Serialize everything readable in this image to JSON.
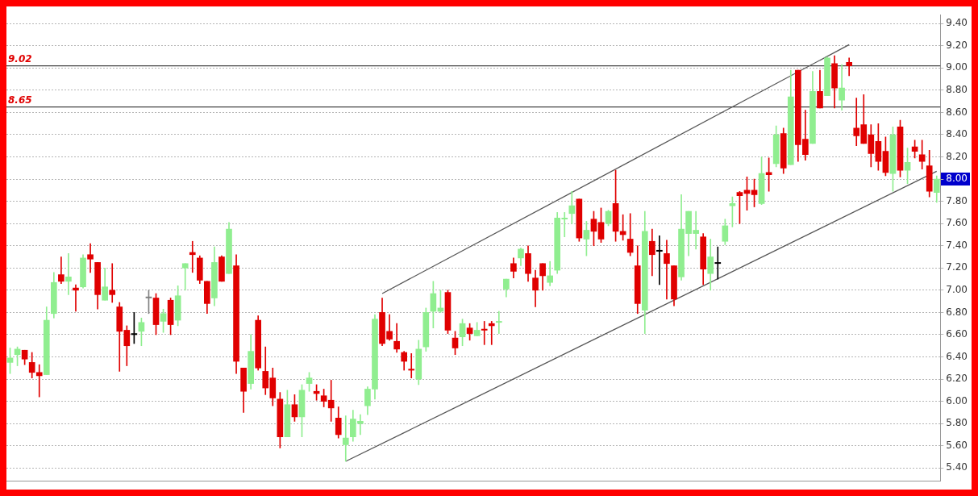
{
  "chart_data": {
    "type": "candlestick",
    "categories": [
      null,
      null,
      null,
      null,
      null,
      null,
      null,
      null,
      null,
      null,
      null,
      null,
      null,
      null,
      null,
      null,
      null,
      null,
      null,
      null,
      null,
      null,
      null,
      null,
      null,
      null,
      null,
      null,
      null,
      null,
      null,
      null,
      null,
      null,
      null,
      null,
      null,
      null,
      null,
      null,
      null,
      null,
      null,
      null,
      null,
      null,
      null,
      null,
      null,
      null,
      null,
      null,
      null,
      null,
      null,
      null,
      null,
      null,
      null,
      null,
      null,
      null,
      null,
      null,
      null,
      null,
      null,
      null,
      null,
      null,
      null,
      null,
      null,
      null,
      null,
      null,
      null,
      null,
      null,
      null,
      null,
      null,
      null,
      null,
      null,
      null,
      null,
      null,
      null,
      null,
      null,
      null,
      null,
      null,
      null,
      null,
      null,
      null,
      null,
      null,
      null,
      null,
      null,
      null,
      null,
      null,
      null,
      null,
      null,
      null,
      null,
      null,
      null,
      null,
      null,
      null,
      null,
      null,
      null,
      null,
      null,
      null,
      null,
      null,
      null,
      null,
      null,
      null
    ],
    "ohlc": [
      [
        6.35,
        6.48,
        6.25,
        6.39
      ],
      [
        6.42,
        6.49,
        6.32,
        6.47
      ],
      [
        6.46,
        6.46,
        6.33,
        6.38
      ],
      [
        6.35,
        6.44,
        6.21,
        6.26
      ],
      [
        6.26,
        6.33,
        6.04,
        6.23
      ],
      [
        6.24,
        6.85,
        6.24,
        6.73
      ],
      [
        6.79,
        7.16,
        6.75,
        7.07
      ],
      [
        7.14,
        7.3,
        7.06,
        7.08
      ],
      [
        7.08,
        7.33,
        6.96,
        7.12
      ],
      [
        7.02,
        7.05,
        6.81,
        7.0
      ],
      [
        7.03,
        7.32,
        7.02,
        7.29
      ],
      [
        7.32,
        7.42,
        7.16,
        7.28
      ],
      [
        7.25,
        7.25,
        6.83,
        6.96
      ],
      [
        6.91,
        7.2,
        6.91,
        7.03
      ],
      [
        7.0,
        7.24,
        6.89,
        6.96
      ],
      [
        6.85,
        6.89,
        6.27,
        6.63
      ],
      [
        6.64,
        6.68,
        6.32,
        6.5
      ],
      [
        6.6,
        6.8,
        6.52,
        6.61
      ],
      [
        6.63,
        6.75,
        6.5,
        6.71
      ],
      [
        6.93,
        7.0,
        6.79,
        6.94
      ],
      [
        6.93,
        6.97,
        6.6,
        6.69
      ],
      [
        6.72,
        6.83,
        6.62,
        6.79
      ],
      [
        6.91,
        6.93,
        6.6,
        6.69
      ],
      [
        6.73,
        7.04,
        6.68,
        6.95
      ],
      [
        7.2,
        7.24,
        7.0,
        7.24
      ],
      [
        7.34,
        7.44,
        7.16,
        7.32
      ],
      [
        7.29,
        7.31,
        7.06,
        7.09
      ],
      [
        7.08,
        7.08,
        6.79,
        6.88
      ],
      [
        6.93,
        7.39,
        6.86,
        7.25
      ],
      [
        7.3,
        7.31,
        7.08,
        7.08
      ],
      [
        7.15,
        7.61,
        7.15,
        7.55
      ],
      [
        7.22,
        7.32,
        6.25,
        6.36
      ],
      [
        6.3,
        6.3,
        5.9,
        6.09
      ],
      [
        6.16,
        6.6,
        6.11,
        6.45
      ],
      [
        6.73,
        6.77,
        6.28,
        6.3
      ],
      [
        6.27,
        6.49,
        6.06,
        6.12
      ],
      [
        6.21,
        6.3,
        5.96,
        6.03
      ],
      [
        6.02,
        6.08,
        5.58,
        5.68
      ],
      [
        5.68,
        6.1,
        5.68,
        5.97
      ],
      [
        5.97,
        6.06,
        5.82,
        5.86
      ],
      [
        5.86,
        6.15,
        5.68,
        6.1
      ],
      [
        6.16,
        6.26,
        6.09,
        6.21
      ],
      [
        6.09,
        6.15,
        6.01,
        6.07
      ],
      [
        6.05,
        6.11,
        5.95,
        6.0
      ],
      [
        6.01,
        6.19,
        5.82,
        5.94
      ],
      [
        5.85,
        5.95,
        5.67,
        5.7
      ],
      [
        5.61,
        5.87,
        5.46,
        5.67
      ],
      [
        5.68,
        5.92,
        5.64,
        5.84
      ],
      [
        5.8,
        5.88,
        5.7,
        5.82
      ],
      [
        5.96,
        6.13,
        5.88,
        6.11
      ],
      [
        6.11,
        6.78,
        6.02,
        6.74
      ],
      [
        6.8,
        6.93,
        6.5,
        6.52
      ],
      [
        6.63,
        6.78,
        6.55,
        6.56
      ],
      [
        6.54,
        6.7,
        6.44,
        6.47
      ],
      [
        6.44,
        6.45,
        6.28,
        6.36
      ],
      [
        6.29,
        6.43,
        6.21,
        6.28
      ],
      [
        6.2,
        6.55,
        6.15,
        6.47
      ],
      [
        6.49,
        6.84,
        6.45,
        6.8
      ],
      [
        6.81,
        7.08,
        6.66,
        6.97
      ],
      [
        6.81,
        7.0,
        6.8,
        6.84
      ],
      [
        6.98,
        7.0,
        6.61,
        6.64
      ],
      [
        6.57,
        6.63,
        6.42,
        6.48
      ],
      [
        6.58,
        6.74,
        6.5,
        6.7
      ],
      [
        6.66,
        6.7,
        6.55,
        6.61
      ],
      [
        6.59,
        6.71,
        6.59,
        6.64
      ],
      [
        6.65,
        6.72,
        6.51,
        6.64
      ],
      [
        6.7,
        6.72,
        6.51,
        6.68
      ],
      [
        6.71,
        6.81,
        6.61,
        6.72
      ],
      [
        7.01,
        7.1,
        6.94,
        7.1
      ],
      [
        7.24,
        7.29,
        7.11,
        7.17
      ],
      [
        7.29,
        7.38,
        7.22,
        7.37
      ],
      [
        7.33,
        7.4,
        7.08,
        7.15
      ],
      [
        7.11,
        7.18,
        6.85,
        7.0
      ],
      [
        7.24,
        7.24,
        7.0,
        7.13
      ],
      [
        7.07,
        7.26,
        7.04,
        7.13
      ],
      [
        7.18,
        7.7,
        7.15,
        7.65
      ],
      [
        7.64,
        7.7,
        7.48,
        7.65
      ],
      [
        7.69,
        7.89,
        7.6,
        7.76
      ],
      [
        7.82,
        7.82,
        7.44,
        7.47
      ],
      [
        7.46,
        7.62,
        7.31,
        7.54
      ],
      [
        7.64,
        7.71,
        7.4,
        7.53
      ],
      [
        7.61,
        7.74,
        7.43,
        7.46
      ],
      [
        7.6,
        7.72,
        7.58,
        7.71
      ],
      [
        7.78,
        8.08,
        7.44,
        7.53
      ],
      [
        7.53,
        7.68,
        7.45,
        7.5
      ],
      [
        7.46,
        7.69,
        7.31,
        7.34
      ],
      [
        7.22,
        7.4,
        6.79,
        6.88
      ],
      [
        6.82,
        7.71,
        6.61,
        7.53
      ],
      [
        7.44,
        7.55,
        7.13,
        7.32
      ],
      [
        7.35,
        7.49,
        7.05,
        7.36
      ],
      [
        7.33,
        7.45,
        6.92,
        7.24
      ],
      [
        7.22,
        7.22,
        6.86,
        6.92
      ],
      [
        7.12,
        7.86,
        7.09,
        7.55
      ],
      [
        7.51,
        7.71,
        7.31,
        7.71
      ],
      [
        7.51,
        7.71,
        7.37,
        7.54
      ],
      [
        7.48,
        7.51,
        7.05,
        7.19
      ],
      [
        7.15,
        7.46,
        7.0,
        7.3
      ],
      [
        7.24,
        7.39,
        7.1,
        7.25
      ],
      [
        7.44,
        7.64,
        7.41,
        7.58
      ],
      [
        7.76,
        7.84,
        7.57,
        7.78
      ],
      [
        7.88,
        7.89,
        7.6,
        7.85
      ],
      [
        7.9,
        8.02,
        7.72,
        7.87
      ],
      [
        7.9,
        8.0,
        7.75,
        7.86
      ],
      [
        7.78,
        8.2,
        7.77,
        8.05
      ],
      [
        8.06,
        8.19,
        7.89,
        8.04
      ],
      [
        8.14,
        8.48,
        8.11,
        8.4
      ],
      [
        8.41,
        8.46,
        8.05,
        8.1
      ],
      [
        8.13,
        8.98,
        8.13,
        8.74
      ],
      [
        8.98,
        8.98,
        8.16,
        8.31
      ],
      [
        8.36,
        8.62,
        8.17,
        8.22
      ],
      [
        8.32,
        8.97,
        8.32,
        8.79
      ],
      [
        8.79,
        8.98,
        8.64,
        8.64
      ],
      [
        8.75,
        9.1,
        8.75,
        9.09
      ],
      [
        9.04,
        9.11,
        8.64,
        8.82
      ],
      [
        8.71,
        9.03,
        8.62,
        8.82
      ],
      [
        9.05,
        9.09,
        8.93,
        9.02
      ],
      [
        8.46,
        8.73,
        8.3,
        8.39
      ],
      [
        8.49,
        8.76,
        8.32,
        8.32
      ],
      [
        8.4,
        8.49,
        8.11,
        8.23
      ],
      [
        8.34,
        8.5,
        8.08,
        8.16
      ],
      [
        8.25,
        8.38,
        8.03,
        8.06
      ],
      [
        8.05,
        8.47,
        7.89,
        8.4
      ],
      [
        8.47,
        8.53,
        8.02,
        8.08
      ],
      [
        8.08,
        8.28,
        7.96,
        8.15
      ],
      [
        8.29,
        8.35,
        8.19,
        8.25
      ],
      [
        8.22,
        8.35,
        8.09,
        8.16
      ],
      [
        8.12,
        8.26,
        7.84,
        7.89
      ],
      [
        7.88,
        8.03,
        7.79,
        8.0
      ]
    ],
    "colors": [
      "#90ee90",
      "#90ee90",
      "#e00000",
      "#e00000",
      "#e00000",
      "#90ee90",
      "#90ee90",
      "#e00000",
      "#90ee90",
      "#e00000",
      "#90ee90",
      "#e00000",
      "#e00000",
      "#90ee90",
      "#e00000",
      "#e00000",
      "#e00000",
      "#000000",
      "#90ee90",
      "#808080",
      "#e00000",
      "#90ee90",
      "#e00000",
      "#90ee90",
      "#90ee90",
      "#e00000",
      "#e00000",
      "#e00000",
      "#90ee90",
      "#e00000",
      "#90ee90",
      "#e00000",
      "#e00000",
      "#90ee90",
      "#e00000",
      "#e00000",
      "#e00000",
      "#e00000",
      "#90ee90",
      "#e00000",
      "#90ee90",
      "#90ee90",
      "#e00000",
      "#e00000",
      "#e00000",
      "#e00000",
      "#90ee90",
      "#90ee90",
      "#90ee90",
      "#90ee90",
      "#90ee90",
      "#e00000",
      "#e00000",
      "#e00000",
      "#e00000",
      "#e00000",
      "#90ee90",
      "#90ee90",
      "#90ee90",
      "#90ee90",
      "#e00000",
      "#e00000",
      "#90ee90",
      "#e00000",
      "#90ee90",
      "#e00000",
      "#e00000",
      "#90ee90",
      "#90ee90",
      "#e00000",
      "#90ee90",
      "#e00000",
      "#e00000",
      "#e00000",
      "#90ee90",
      "#90ee90",
      "#90ee90",
      "#90ee90",
      "#e00000",
      "#90ee90",
      "#e00000",
      "#e00000",
      "#90ee90",
      "#e00000",
      "#e00000",
      "#e00000",
      "#e00000",
      "#90ee90",
      "#e00000",
      "#000000",
      "#e00000",
      "#e00000",
      "#90ee90",
      "#90ee90",
      "#90ee90",
      "#e00000",
      "#90ee90",
      "#000000",
      "#90ee90",
      "#90ee90",
      "#e00000",
      "#e00000",
      "#e00000",
      "#90ee90",
      "#e00000",
      "#90ee90",
      "#e00000",
      "#90ee90",
      "#e00000",
      "#e00000",
      "#90ee90",
      "#e00000",
      "#90ee90",
      "#e00000",
      "#90ee90",
      "#e00000",
      "#e00000",
      "#e00000",
      "#e00000",
      "#e00000",
      "#e00000",
      "#90ee90",
      "#e00000",
      "#90ee90",
      "#e00000",
      "#e00000",
      "#e00000",
      "#90ee90"
    ],
    "series": [
      {
        "type": "line",
        "color": "#555555",
        "values": [
          null,
          null,
          null,
          null,
          null,
          null,
          null,
          null,
          null,
          null,
          null,
          null,
          null,
          null,
          null,
          null,
          null,
          null,
          null,
          null,
          null,
          null,
          null,
          null,
          null,
          null,
          null,
          null,
          null,
          null,
          null,
          null,
          null,
          null,
          null,
          null,
          null,
          null,
          null,
          null,
          null,
          null,
          null,
          null,
          null,
          null,
          null,
          null,
          null,
          null,
          null,
          6.97,
          null,
          null,
          null,
          null,
          null,
          null,
          null,
          null,
          null,
          null,
          null,
          null,
          null,
          null,
          null,
          null,
          null,
          null,
          null,
          null,
          null,
          null,
          null,
          null,
          null,
          null,
          null,
          null,
          null,
          null,
          null,
          null,
          null,
          null,
          null,
          null,
          null,
          null,
          null,
          null,
          null,
          null,
          null,
          null,
          null,
          null,
          null,
          null,
          null,
          null,
          null,
          null,
          null,
          null,
          null,
          null,
          null,
          null,
          null,
          null,
          null,
          null,
          null,
          9.21,
          null,
          null,
          null,
          null,
          null,
          null,
          null,
          null,
          null,
          null,
          null,
          null
        ]
      },
      {
        "type": "line",
        "color": "#555555",
        "values": [
          null,
          null,
          null,
          null,
          null,
          null,
          null,
          null,
          null,
          null,
          null,
          null,
          null,
          null,
          null,
          null,
          null,
          null,
          null,
          null,
          null,
          null,
          null,
          null,
          null,
          null,
          null,
          null,
          null,
          null,
          null,
          null,
          null,
          null,
          null,
          null,
          null,
          null,
          null,
          null,
          null,
          null,
          null,
          null,
          null,
          null,
          5.46,
          null,
          null,
          null,
          null,
          null,
          null,
          null,
          null,
          null,
          null,
          null,
          null,
          null,
          null,
          null,
          null,
          null,
          null,
          null,
          null,
          null,
          null,
          null,
          null,
          null,
          null,
          null,
          null,
          null,
          null,
          null,
          null,
          null,
          null,
          null,
          null,
          null,
          null,
          null,
          null,
          null,
          null,
          null,
          null,
          null,
          null,
          null,
          null,
          null,
          null,
          null,
          null,
          null,
          null,
          null,
          null,
          null,
          null,
          null,
          null,
          null,
          null,
          null,
          null,
          null,
          null,
          null,
          null,
          null,
          null,
          null,
          null,
          null,
          null,
          null,
          null,
          null,
          null,
          null,
          null,
          8.07
        ]
      }
    ],
    "ylim": [
      5.28,
      9.48
    ],
    "yticks": [
      {
        "value": 5.4,
        "label": "5.40"
      },
      {
        "value": 5.6,
        "label": "5.60"
      },
      {
        "value": 5.8,
        "label": "5.80"
      },
      {
        "value": 6,
        "label": "6.00"
      },
      {
        "value": 6.2,
        "label": "6.20"
      },
      {
        "value": 6.4,
        "label": "6.40"
      },
      {
        "value": 6.6,
        "label": "6.60"
      },
      {
        "value": 6.8,
        "label": "6.80"
      },
      {
        "value": 7,
        "label": "7.00"
      },
      {
        "value": 7.2,
        "label": "7.20"
      },
      {
        "value": 7.4,
        "label": "7.40"
      },
      {
        "value": 7.6,
        "label": "7.60"
      },
      {
        "value": 7.8,
        "label": "7.80"
      },
      {
        "value": 8,
        "label": "8.00"
      },
      {
        "value": 8.2,
        "label": "8.20"
      },
      {
        "value": 8.4,
        "label": "8.40"
      },
      {
        "value": 8.6,
        "label": "8.60"
      },
      {
        "value": 8.8,
        "label": "8.80"
      },
      {
        "value": 9,
        "label": "9.00"
      },
      {
        "value": 9.2,
        "label": "9.20"
      },
      {
        "value": 9.4,
        "label": "9.40"
      }
    ],
    "ref_lines": [
      {
        "axis": "y",
        "value": 9.02,
        "label": "9.02",
        "color": "#444444"
      },
      {
        "axis": "y",
        "value": 8.65,
        "label": "8.65",
        "color": "#444444"
      }
    ],
    "grid": "y",
    "legend": false,
    "tick_labels": "y"
  }
}
